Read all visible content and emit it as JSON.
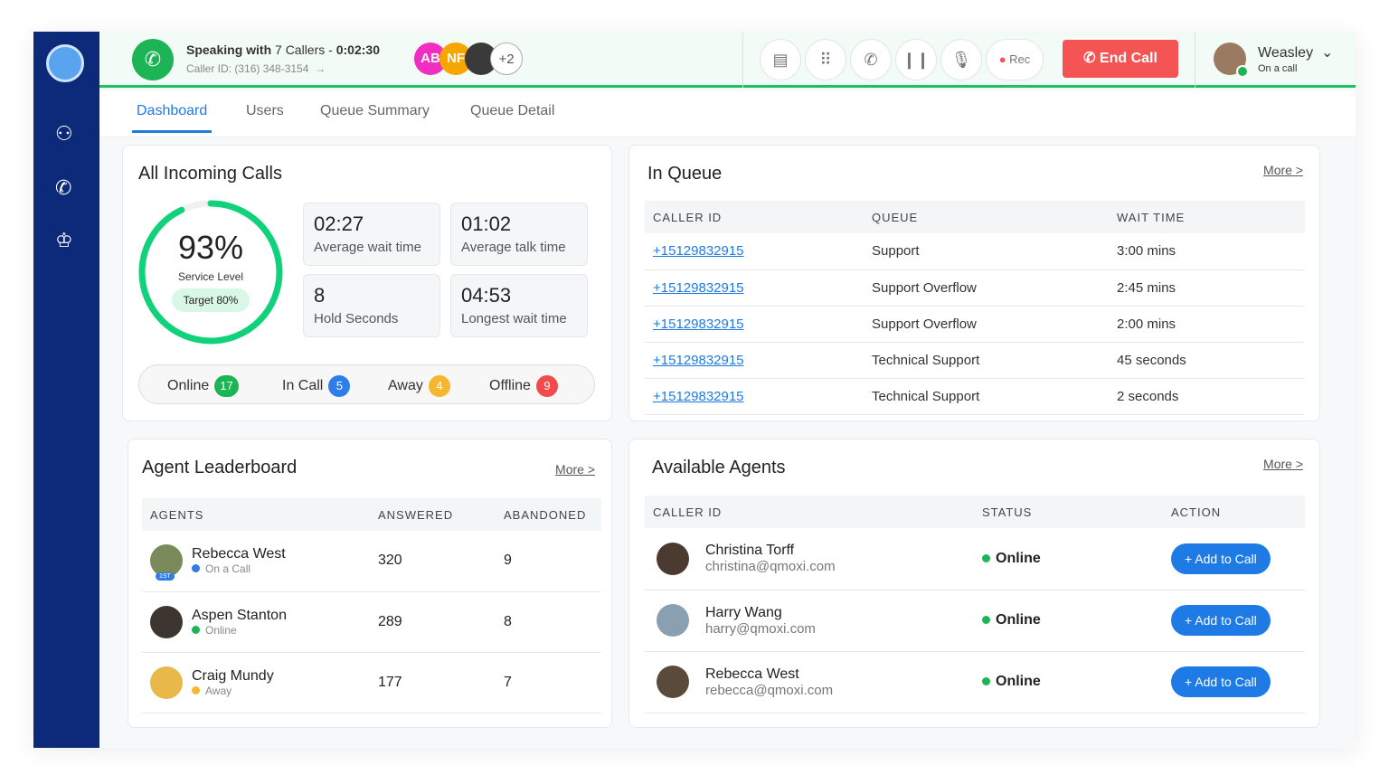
{
  "header": {
    "speaking_prefix": "Speaking with",
    "callers": "7 Callers",
    "sep": " - ",
    "timer": "0:02:30",
    "caller_id": "Caller ID: (316) 348-3154",
    "avatars": [
      {
        "initials": "AB",
        "color": "#f02fc2"
      },
      {
        "initials": "NF",
        "color": "#f7a600"
      }
    ],
    "more_callers": "+2",
    "controls": [
      "document-icon",
      "dialpad-icon",
      "add-call-icon",
      "pause-icon",
      "mic-icon"
    ],
    "rec_label": "Rec",
    "end_call_label": "End Call",
    "user": {
      "name": "Weasley",
      "status": "On a call"
    }
  },
  "colors": {
    "accent": "#1e7be6",
    "green": "#1ec064",
    "red": "#f55454",
    "sidebar": "#0d2a7a"
  },
  "tabs": [
    "Dashboard",
    "Users",
    "Queue Summary",
    "Queue Detail"
  ],
  "incoming": {
    "title": "All Incoming Calls",
    "service_pct": "93%",
    "service_level": 93,
    "service_label": "Service Level",
    "target": "Target 80%",
    "stats": [
      {
        "value": "02:27",
        "label": "Average wait time"
      },
      {
        "value": "01:02",
        "label": "Average talk time"
      },
      {
        "value": "8",
        "label": "Hold Seconds"
      },
      {
        "value": "04:53",
        "label": "Longest wait time"
      }
    ],
    "statuses": [
      {
        "label": "Online",
        "count": "17",
        "color": "#1cb454"
      },
      {
        "label": "In Call",
        "count": "5",
        "color": "#2f7de8"
      },
      {
        "label": "Away",
        "count": "4",
        "color": "#f5b731"
      },
      {
        "label": "Offline",
        "count": "9",
        "color": "#f24b4b"
      }
    ]
  },
  "queue": {
    "title": "In Queue",
    "more": "More >",
    "headers": [
      "CALLER ID",
      "QUEUE",
      "WAIT TIME"
    ],
    "rows": [
      [
        "+15129832915",
        "Support",
        "3:00 mins"
      ],
      [
        "+15129832915",
        "Support Overflow",
        "2:45 mins"
      ],
      [
        "+15129832915",
        "Support Overflow",
        "2:00 mins"
      ],
      [
        "+15129832915",
        "Technical Support",
        "45 seconds"
      ],
      [
        "+15129832915",
        "Technical Support",
        "2 seconds"
      ]
    ]
  },
  "leaderboard": {
    "title": "Agent Leaderboard",
    "more": "More >",
    "headers": [
      "AGENTS",
      "ANSWERED",
      "ABANDONED"
    ],
    "badge": "1ST",
    "rows": [
      {
        "name": "Rebecca West",
        "status": "On a Call",
        "color": "#2f7de8",
        "answered": "320",
        "abandoned": "9"
      },
      {
        "name": "Aspen Stanton",
        "status": "Online",
        "color": "#1cb454",
        "answered": "289",
        "abandoned": "8"
      },
      {
        "name": "Craig Mundy",
        "status": "Away",
        "color": "#f5b731",
        "answered": "177",
        "abandoned": "7"
      }
    ]
  },
  "agents": {
    "title": "Available Agents",
    "more": "More >",
    "headers": [
      "CALLER ID",
      "STATUS",
      "ACTION"
    ],
    "action_label": "+  Add to Call",
    "rows": [
      {
        "name": "Christina Torff",
        "email": "christina@qmoxi.com",
        "status": "Online"
      },
      {
        "name": "Harry Wang",
        "email": "harry@qmoxi.com",
        "status": "Online"
      },
      {
        "name": "Rebecca West",
        "email": "rebecca@qmoxi.com",
        "status": "Online"
      }
    ]
  }
}
